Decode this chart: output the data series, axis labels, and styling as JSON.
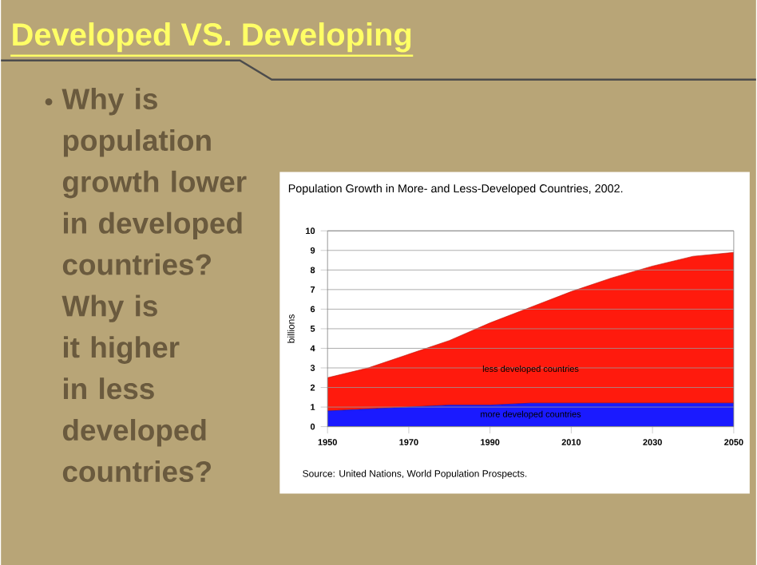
{
  "chart_data": {
    "type": "area",
    "stacked": true,
    "title": "Developed VS. Developing",
    "subtitle": "Population Growth in More- and Less-Developed Countries, 2002.",
    "ylabel": "billions",
    "x": [
      1950,
      1960,
      1970,
      1980,
      1990,
      2000,
      2010,
      2020,
      2030,
      2040,
      2050
    ],
    "series": [
      {
        "name": "more developed countries",
        "color": "#1a1aff",
        "values": [
          0.8,
          0.9,
          1.0,
          1.1,
          1.1,
          1.2,
          1.2,
          1.2,
          1.2,
          1.2,
          1.2
        ]
      },
      {
        "name": "less developed countries",
        "color": "#ff1a0d",
        "values": [
          1.7,
          2.1,
          2.7,
          3.3,
          4.2,
          4.9,
          5.7,
          6.4,
          7.0,
          7.5,
          7.7
        ]
      }
    ],
    "xlim": [
      1950,
      2050
    ],
    "xticks": [
      1950,
      1970,
      1990,
      2010,
      2030,
      2050
    ],
    "ylim": [
      0,
      10
    ],
    "yticks": [
      0,
      1,
      2,
      3,
      4,
      5,
      6,
      7,
      8,
      9,
      10
    ],
    "grid": "y",
    "annotations": [
      "Why is population growth lower in developed countries? Why is it higher in less developed countries?",
      "Source: United Nations, World Population Prospects."
    ]
  }
}
